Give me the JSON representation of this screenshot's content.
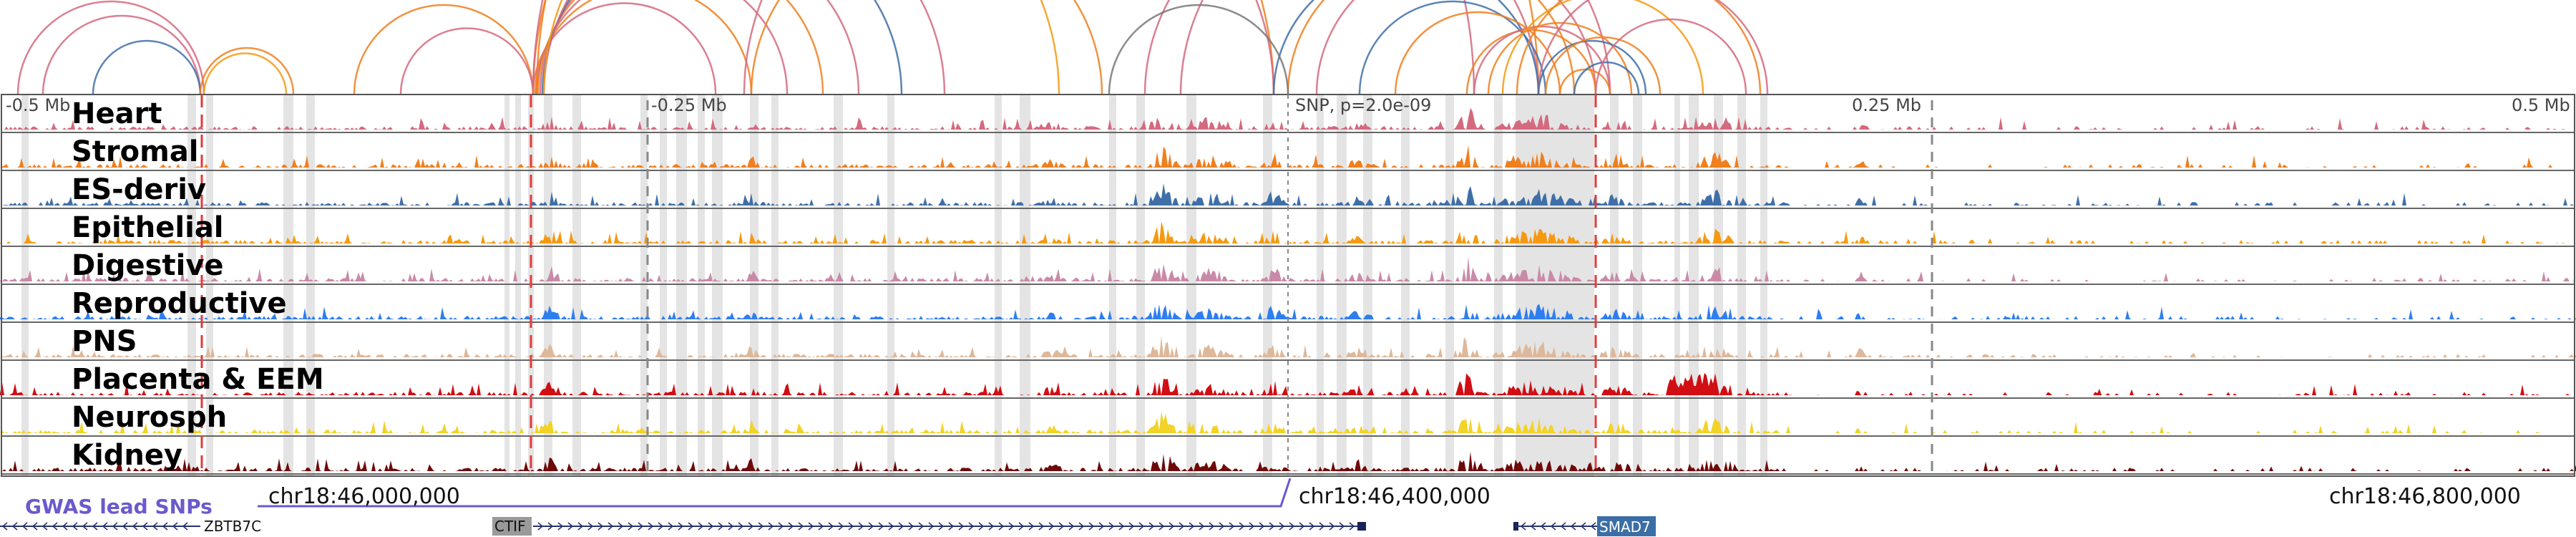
{
  "axis": {
    "labels": [
      "-0.5 Mb",
      "-0.25 Mb",
      "0.25 Mb",
      "0.5 Mb"
    ],
    "snp_label": "SNP, p=2.0e-09"
  },
  "tracks": [
    {
      "name": "Heart",
      "color": "#d46a7e"
    },
    {
      "name": "Stromal",
      "color": "#f07f1e"
    },
    {
      "name": "ES-deriv",
      "color": "#3f6fa8"
    },
    {
      "name": "Epithelial",
      "color": "#f59a10"
    },
    {
      "name": "Digestive",
      "color": "#c98aa8"
    },
    {
      "name": "Reproductive",
      "color": "#2f7ef0"
    },
    {
      "name": "PNS",
      "color": "#ddb89a"
    },
    {
      "name": "Placenta & EEM",
      "color": "#d10e14"
    },
    {
      "name": "Neurosph",
      "color": "#f2d327"
    },
    {
      "name": "Kidney",
      "color": "#6e0a0a"
    }
  ],
  "gwas": {
    "label": "GWAS lead SNPs",
    "color": "#6a5acd"
  },
  "coordinates": [
    "chr18:46,000,000",
    "chr18:46,400,000",
    "chr18:46,800,000"
  ],
  "genes": {
    "zbtb7c": "ZBTB7C",
    "ctif": "CTIF",
    "smad7": "SMAD7"
  },
  "colors": {
    "highlight_line": "#e23b3b",
    "gene_strand": "#27336e",
    "smad7_box": "#3b6ea5",
    "ctif_box": "#9a9a9a"
  }
}
